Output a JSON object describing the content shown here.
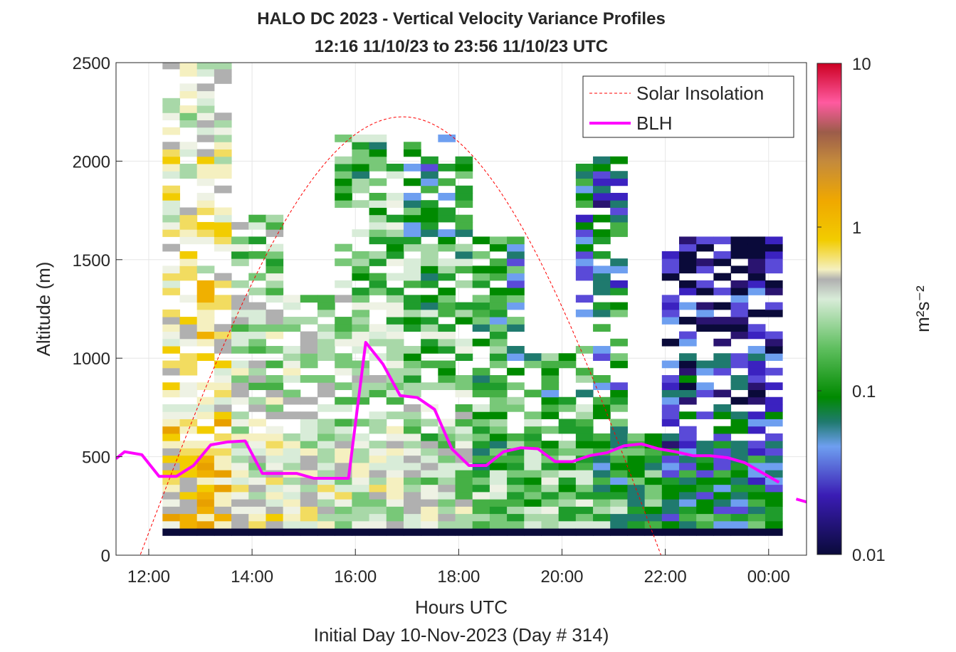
{
  "chart_data": {
    "type": "heatmap",
    "title": "HALO DC 2023 - Vertical Velocity Variance Profiles",
    "subtitle": "12:16 11/10/23 to 23:56 11/10/23  UTC",
    "xlabel": "Hours UTC",
    "footer": "Initial Day 10-Nov-2023 (Day # 314)",
    "ylabel": "Altitude (m)",
    "colorbar_label": "m²s⁻²",
    "color_scale": "log",
    "clim": [
      0.01,
      10
    ],
    "colorbar_ticks": [
      "0.01",
      "0.1",
      "1",
      "10"
    ],
    "xlim": [
      "11:22",
      "00:44"
    ],
    "x_ticks": [
      "12:00",
      "14:00",
      "16:00",
      "18:00",
      "20:00",
      "22:00",
      "00:00"
    ],
    "ylim": [
      0,
      2500
    ],
    "y_ticks": [
      "0",
      "500",
      "1000",
      "1500",
      "2000",
      "2500"
    ],
    "grid": true,
    "legend": {
      "placement": "top-right",
      "entries": [
        "Solar Insolation",
        "BLH"
      ]
    },
    "colors": {
      "blh": "#ff00ff",
      "solar": "#ff0000",
      "frame": "#262626"
    },
    "blh": {
      "name": "BLH",
      "times": [
        "11:22",
        "11:32",
        "11:52",
        "12:12",
        "12:32",
        "12:52",
        "13:12",
        "13:32",
        "13:52",
        "14:12",
        "14:32",
        "14:52",
        "15:12",
        "15:32",
        "15:52",
        "16:12",
        "16:32",
        "16:52",
        "17:12",
        "17:32",
        "17:52",
        "18:12",
        "18:32",
        "18:52",
        "19:12",
        "19:32",
        "19:52",
        "20:12",
        "20:32",
        "20:52",
        "21:12",
        "21:32",
        "21:52",
        "22:12",
        "22:32",
        "22:52",
        "23:12",
        "23:32",
        "23:52",
        "00:12"
      ],
      "values": [
        490,
        525,
        510,
        400,
        400,
        455,
        560,
        575,
        580,
        415,
        415,
        415,
        390,
        390,
        390,
        1080,
        970,
        810,
        800,
        740,
        540,
        455,
        455,
        525,
        545,
        540,
        475,
        475,
        505,
        520,
        555,
        565,
        540,
        525,
        505,
        505,
        495,
        470,
        420,
        370
      ],
      "extra_segment": {
        "times": [
          "00:32",
          "00:44"
        ],
        "values": [
          285,
          270
        ]
      }
    },
    "solar": {
      "name": "Solar Insolation",
      "zero_until": "11:50",
      "rise_end": "21:55",
      "peak_time": "16:55",
      "peak_altitude": 2225
    },
    "heatmap": {
      "cell_minutes": 10,
      "cell_altitude_m": 30,
      "note": "variance values per time/altitude bin rendered as colored cells"
    }
  }
}
